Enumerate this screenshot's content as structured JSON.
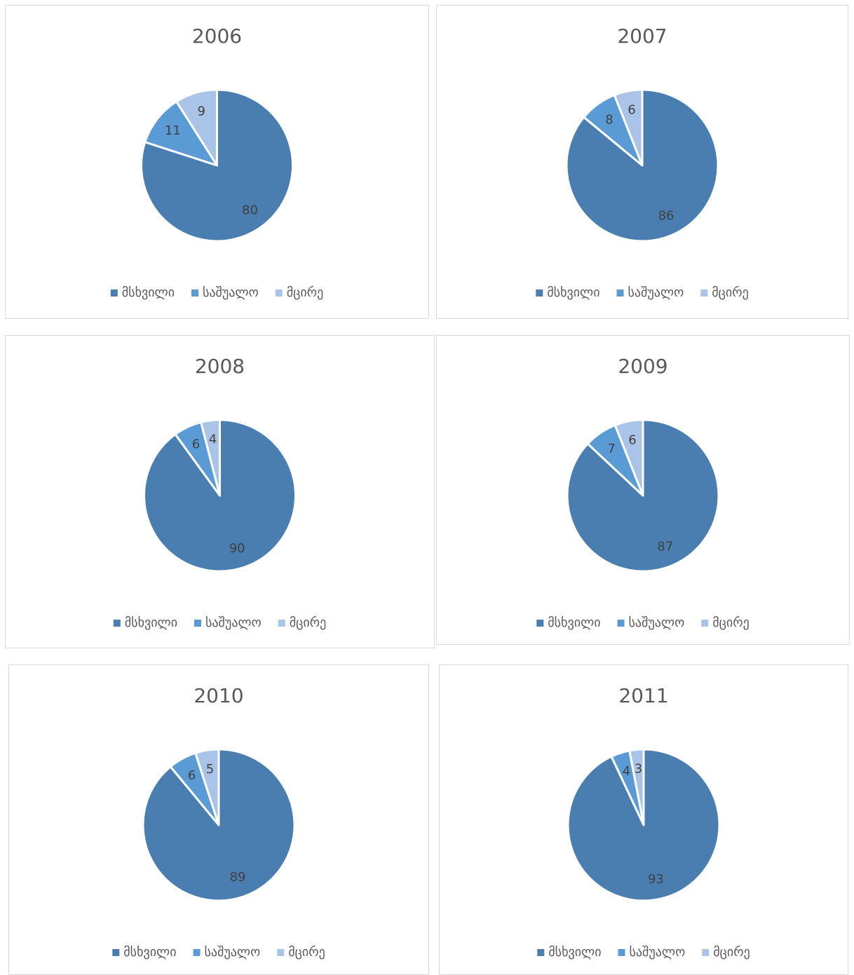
{
  "chart_data": [
    {
      "type": "pie",
      "title": "2006",
      "categories": [
        "მსხვილი",
        "საშუალო",
        "მცირე"
      ],
      "values": [
        80,
        11,
        9
      ],
      "colors": [
        "#4a7eb0",
        "#5b9bd5",
        "#a9c4e6"
      ]
    },
    {
      "type": "pie",
      "title": "2007",
      "categories": [
        "მსხვილი",
        "საშუალო",
        "მცირე"
      ],
      "values": [
        86,
        8,
        6
      ],
      "colors": [
        "#4a7eb0",
        "#5b9bd5",
        "#a9c4e6"
      ]
    },
    {
      "type": "pie",
      "title": "2008",
      "categories": [
        "მსხვილი",
        "საშუალო",
        "მცირე"
      ],
      "values": [
        90,
        6,
        4
      ],
      "colors": [
        "#4a7eb0",
        "#5b9bd5",
        "#a9c4e6"
      ]
    },
    {
      "type": "pie",
      "title": "2009",
      "categories": [
        "მსხვილი",
        "საშუალო",
        "მცირე"
      ],
      "values": [
        87,
        7,
        6
      ],
      "colors": [
        "#4a7eb0",
        "#5b9bd5",
        "#a9c4e6"
      ]
    },
    {
      "type": "pie",
      "title": "2010",
      "categories": [
        "მსხვილი",
        "საშუალო",
        "მცირე"
      ],
      "values": [
        89,
        6,
        5
      ],
      "colors": [
        "#4a7eb0",
        "#5b9bd5",
        "#a9c4e6"
      ]
    },
    {
      "type": "pie",
      "title": "2011",
      "categories": [
        "მსხვილი",
        "საშუალო",
        "მცირე"
      ],
      "values": [
        93,
        4,
        3
      ],
      "colors": [
        "#4a7eb0",
        "#5b9bd5",
        "#a9c4e6"
      ]
    }
  ]
}
